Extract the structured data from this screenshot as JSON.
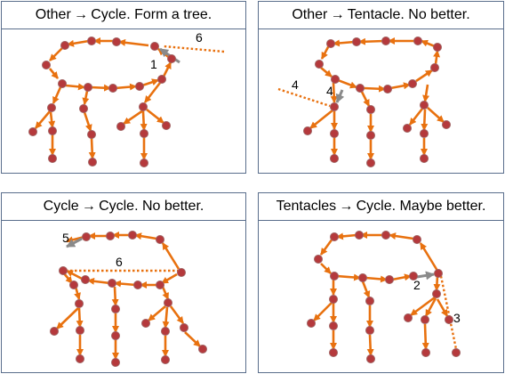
{
  "panels": [
    {
      "title": "Other → Cycle. Form a tree.",
      "labels": [
        "1",
        "6"
      ]
    },
    {
      "title": "Other → Tentacle. No better.",
      "labels": [
        "4",
        "4"
      ]
    },
    {
      "title": "Cycle → Cycle. No better.",
      "labels": [
        "5",
        "6"
      ]
    },
    {
      "title": "Tentacles → Cycle. Maybe better.",
      "labels": [
        "2",
        "3"
      ]
    }
  ],
  "colors": {
    "edge": "#e8710f",
    "node": "#b5393c",
    "gray": "#8a8a8a",
    "border": "#5a6e8c"
  }
}
